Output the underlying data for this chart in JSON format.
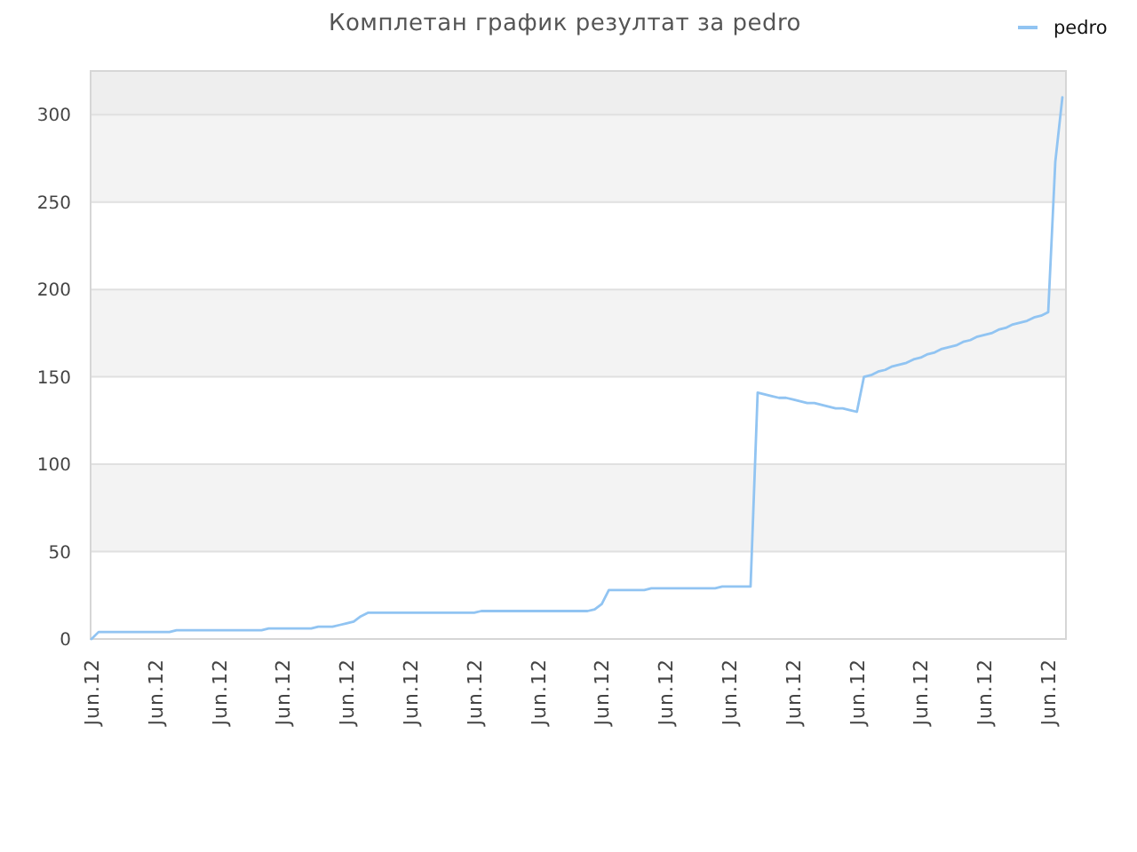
{
  "chart_data": {
    "type": "line",
    "title": "Комплетан график резултат за pedro",
    "categories": [
      "Jun.12",
      null,
      null,
      null,
      null,
      null,
      null,
      null,
      null,
      "Jun.12",
      null,
      null,
      null,
      null,
      null,
      null,
      null,
      null,
      "Jun.12",
      null,
      null,
      null,
      null,
      null,
      null,
      null,
      null,
      "Jun.12",
      null,
      null,
      null,
      null,
      null,
      null,
      null,
      null,
      "Jun.12",
      null,
      null,
      null,
      null,
      null,
      null,
      null,
      null,
      "Jun.12",
      null,
      null,
      null,
      null,
      null,
      null,
      null,
      null,
      "Jun.12",
      null,
      null,
      null,
      null,
      null,
      null,
      null,
      null,
      "Jun.12",
      null,
      null,
      null,
      null,
      null,
      null,
      null,
      null,
      "Jun.12",
      null,
      null,
      null,
      null,
      null,
      null,
      null,
      null,
      "Jun.12",
      null,
      null,
      null,
      null,
      null,
      null,
      null,
      null,
      "Jun.12",
      null,
      null,
      null,
      null,
      null,
      null,
      null,
      null,
      "Jun.12",
      null,
      null,
      null,
      null,
      null,
      null,
      null,
      null,
      "Jun.12",
      null,
      null,
      null,
      null,
      null,
      null,
      null,
      null,
      "Jun.12",
      null,
      null,
      null,
      null,
      null,
      null,
      null,
      null,
      "Jun.12",
      null,
      null,
      null,
      null,
      null,
      null,
      null,
      null,
      "Jun.12",
      null,
      null
    ],
    "series": [
      {
        "name": "pedro",
        "color": "#91c4f2",
        "values": [
          0,
          4,
          4,
          4,
          4,
          4,
          4,
          4,
          4,
          4,
          4,
          4,
          5,
          5,
          5,
          5,
          5,
          5,
          5,
          5,
          5,
          5,
          5,
          5,
          5,
          6,
          6,
          6,
          6,
          6,
          6,
          6,
          7,
          7,
          7,
          8,
          9,
          10,
          13,
          15,
          15,
          15,
          15,
          15,
          15,
          15,
          15,
          15,
          15,
          15,
          15,
          15,
          15,
          15,
          15,
          16,
          16,
          16,
          16,
          16,
          16,
          16,
          16,
          16,
          16,
          16,
          16,
          16,
          16,
          16,
          16,
          17,
          20,
          28,
          28,
          28,
          28,
          28,
          28,
          29,
          29,
          29,
          29,
          29,
          29,
          29,
          29,
          29,
          29,
          30,
          30,
          30,
          30,
          30,
          141,
          140,
          139,
          138,
          138,
          137,
          136,
          135,
          135,
          134,
          133,
          132,
          132,
          131,
          130,
          150,
          151,
          153,
          154,
          156,
          157,
          158,
          160,
          161,
          163,
          164,
          166,
          167,
          168,
          170,
          171,
          173,
          174,
          175,
          177,
          178,
          180,
          181,
          182,
          184,
          185,
          187,
          273,
          310
        ]
      }
    ],
    "ylim": [
      0,
      325
    ],
    "yticks": [
      0,
      50,
      100,
      150,
      200,
      250,
      300
    ],
    "grid": true,
    "legend": "top right"
  }
}
